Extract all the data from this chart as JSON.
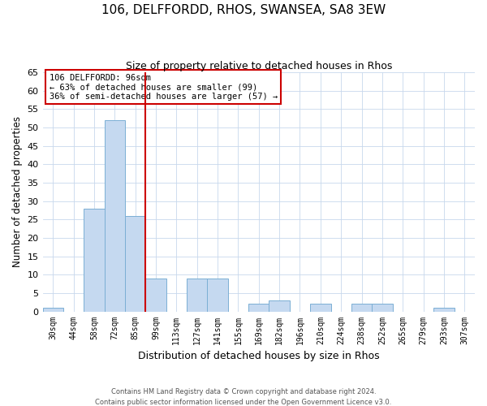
{
  "title": "106, DELFFORDD, RHOS, SWANSEA, SA8 3EW",
  "subtitle": "Size of property relative to detached houses in Rhos",
  "xlabel": "Distribution of detached houses by size in Rhos",
  "ylabel": "Number of detached properties",
  "bin_labels": [
    "30sqm",
    "44sqm",
    "58sqm",
    "72sqm",
    "85sqm",
    "99sqm",
    "113sqm",
    "127sqm",
    "141sqm",
    "155sqm",
    "169sqm",
    "182sqm",
    "196sqm",
    "210sqm",
    "224sqm",
    "238sqm",
    "252sqm",
    "265sqm",
    "279sqm",
    "293sqm",
    "307sqm"
  ],
  "bar_values": [
    1,
    0,
    28,
    52,
    26,
    9,
    0,
    9,
    9,
    0,
    2,
    3,
    0,
    2,
    0,
    2,
    2,
    0,
    0,
    1,
    0
  ],
  "bar_color": "#c5d9f0",
  "bar_edge_color": "#7bafd4",
  "vline_color": "#cc0000",
  "ylim": [
    0,
    65
  ],
  "yticks": [
    0,
    5,
    10,
    15,
    20,
    25,
    30,
    35,
    40,
    45,
    50,
    55,
    60,
    65
  ],
  "annotation_title": "106 DELFFORDD: 96sqm",
  "annotation_line2": "← 63% of detached houses are smaller (99)",
  "annotation_line3": "36% of semi-detached houses are larger (57) →",
  "annotation_box_color": "#ffffff",
  "annotation_box_edge": "#cc0000",
  "footer_line1": "Contains HM Land Registry data © Crown copyright and database right 2024.",
  "footer_line2": "Contains public sector information licensed under the Open Government Licence v3.0.",
  "background_color": "#ffffff",
  "grid_color": "#c8d8ec"
}
